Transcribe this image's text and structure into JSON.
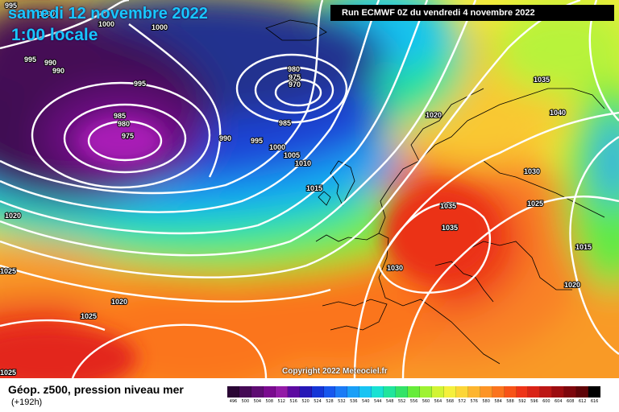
{
  "header": {
    "date_title": "samedi 12 novembre 2022",
    "time_title": "1:00 locale",
    "run_info": "Run ECMWF 0Z du vendredi 4 novembre 2022"
  },
  "footer": {
    "title": "Géop. z500, pression niveau mer",
    "forecast_hour": "(+192h)",
    "copyright": "Copyright 2022 Meteociel.fr"
  },
  "colors": {
    "title_cyan": "#19c6ff",
    "isobar_line": "#ffffff"
  },
  "legend": {
    "ticks": [
      "496",
      "500",
      "504",
      "508",
      "512",
      "516",
      "520",
      "524",
      "528",
      "532",
      "536",
      "540",
      "544",
      "548",
      "552",
      "556",
      "560",
      "564",
      "568",
      "572",
      "576",
      "580",
      "584",
      "588",
      "592",
      "596",
      "600",
      "604",
      "608",
      "612",
      "616"
    ],
    "colors": [
      "#2a0634",
      "#450a55",
      "#5e0c72",
      "#7a0a8f",
      "#931aa7",
      "#5d0aa0",
      "#2617b6",
      "#1535d6",
      "#1757ee",
      "#1b7bf6",
      "#1a9ff7",
      "#18c4f3",
      "#18e1d3",
      "#20e59c",
      "#33e368",
      "#66ec3a",
      "#9ef232",
      "#d2f434",
      "#f5f03c",
      "#fcd637",
      "#fdb52f",
      "#fd9426",
      "#fb741e",
      "#f75318",
      "#ee3418",
      "#d92316",
      "#bc1615",
      "#9c0c10",
      "#7d060c",
      "#5e0307",
      "#000000"
    ]
  },
  "map": {
    "pressure_labels": [
      "995",
      "1000",
      "1000",
      "1000",
      "995",
      "990",
      "990",
      "995",
      "980",
      "975",
      "970",
      "985",
      "980",
      "975",
      "985",
      "990",
      "995",
      "1000",
      "1005",
      "1010",
      "1015",
      "1020",
      "1020",
      "1025",
      "1035",
      "1040",
      "1030",
      "1025",
      "1015",
      "1020",
      "1035",
      "1035",
      "1030",
      "1020",
      "1025",
      "1025"
    ]
  }
}
